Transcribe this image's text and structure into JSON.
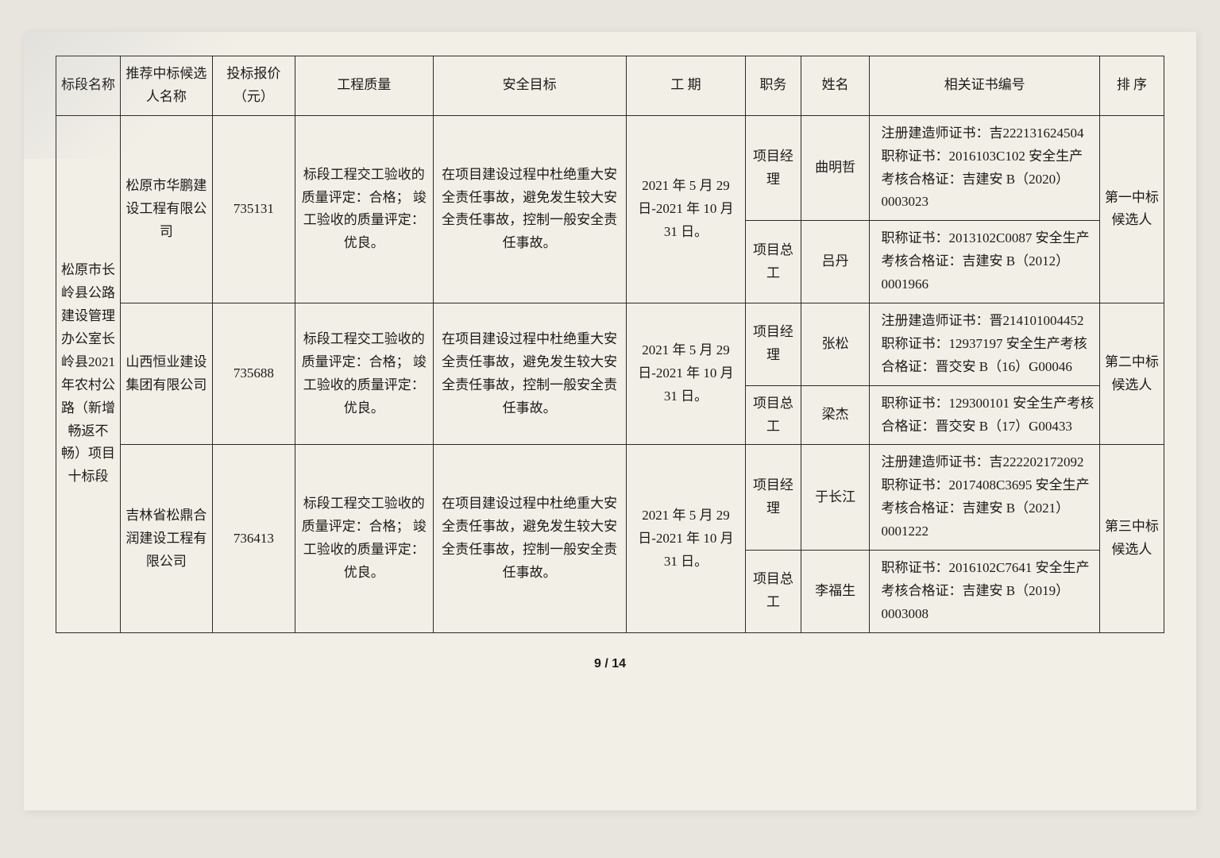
{
  "headers": {
    "section": "标段名称",
    "bidder": "推荐中标候选人名称",
    "price": "投标报价\n（元）",
    "quality": "工程质量",
    "safety": "安全目标",
    "period": "工 期",
    "role": "职务",
    "name": "姓名",
    "cert": "相关证书编号",
    "rank": "排 序"
  },
  "section_name": "松原市长岭县公路建设管理办公室长岭县2021年农村公路（新增畅返不畅）项目十标段",
  "bidders": [
    {
      "company": "松原市华鹏建设工程有限公司",
      "price": "735131",
      "quality": "标段工程交工验收的质量评定：合格；\n竣工验收的质量评定：优良。",
      "safety": "在项目建设过程中杜绝重大安全责任事故，避免发生较大安全责任事故，控制一般安全责任事故。",
      "period": "2021 年 5 月 29 日-2021 年 10 月 31 日。",
      "staff": [
        {
          "role": "项目经理",
          "name": "曲明哲",
          "cert": "注册建造师证书：吉222131624504\n职称证书：2016103C102\n安全生产考核合格证：吉建安 B（2020）0003023"
        },
        {
          "role": "项目总工",
          "name": "吕丹",
          "cert": "职称证书：2013102C0087\n安全生产考核合格证：吉建安 B（2012）0001966"
        }
      ],
      "rank": "第一中标候选人"
    },
    {
      "company": "山西恒业建设集团有限公司",
      "price": "735688",
      "quality": "标段工程交工验收的质量评定：合格；\n竣工验收的质量评定：优良。",
      "safety": "在项目建设过程中杜绝重大安全责任事故，避免发生较大安全责任事故，控制一般安全责任事故。",
      "period": "2021 年 5 月 29 日-2021 年 10 月 31 日。",
      "staff": [
        {
          "role": "项目经理",
          "name": "张松",
          "cert": "注册建造师证书：晋214101004452\n职称证书：12937197\n安全生产考核合格证：晋交安 B（16）G00046"
        },
        {
          "role": "项目总工",
          "name": "梁杰",
          "cert": "职称证书：129300101\n安全生产考核合格证：晋交安 B（17）G00433"
        }
      ],
      "rank": "第二中标候选人"
    },
    {
      "company": "吉林省松鼎合润建设工程有限公司",
      "price": "736413",
      "quality": "标段工程交工验收的质量评定：合格；\n竣工验收的质量评定：优良。",
      "safety": "在项目建设过程中杜绝重大安全责任事故，避免发生较大安全责任事故，控制一般安全责任事故。",
      "period": "2021 年 5 月 29 日-2021 年 10 月 31 日。",
      "staff": [
        {
          "role": "项目经理",
          "name": "于长江",
          "cert": "注册建造师证书：吉222202172092\n职称证书：2017408C3695\n安全生产考核合格证：吉建安 B（2021）0001222"
        },
        {
          "role": "项目总工",
          "name": "李福生",
          "cert": "职称证书：2016102C7641\n安全生产考核合格证：吉建安 B（2019）0003008"
        }
      ],
      "rank": "第三中标候选人"
    }
  ],
  "page_number": "9 / 14"
}
